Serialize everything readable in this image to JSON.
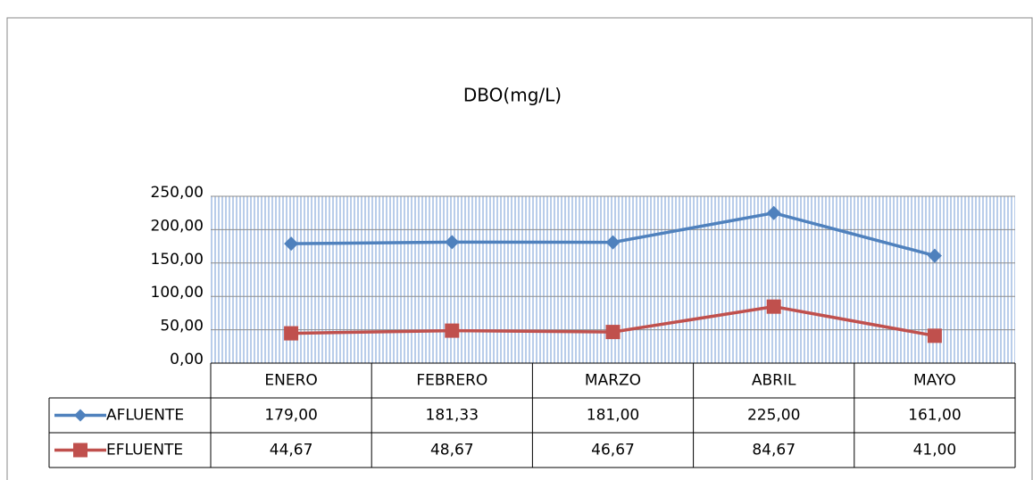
{
  "chart_data": {
    "type": "line",
    "title": "DBO(mg/L)",
    "categories": [
      "ENERO",
      "FEBRERO",
      "MARZO",
      "ABRIL",
      "MAYO"
    ],
    "series": [
      {
        "name": "AFLUENTE",
        "color": "#4f81bd",
        "marker": "diamond",
        "values": [
          179.0,
          181.33,
          181.0,
          225.0,
          161.0
        ],
        "value_labels": [
          "179,00",
          "181,33",
          "181,00",
          "225,00",
          "161,00"
        ]
      },
      {
        "name": "EFLUENTE",
        "color": "#c0504d",
        "marker": "square",
        "values": [
          44.67,
          48.67,
          46.67,
          84.67,
          41.0
        ],
        "value_labels": [
          "44,67",
          "48,67",
          "46,67",
          "84,67",
          "41,00"
        ]
      }
    ],
    "ylim": [
      0,
      250
    ],
    "yticks": [
      {
        "value": 0,
        "label": "0,00"
      },
      {
        "value": 50,
        "label": "50,00"
      },
      {
        "value": 100,
        "label": "100,00"
      },
      {
        "value": 150,
        "label": "150,00"
      },
      {
        "value": 200,
        "label": "200,00"
      },
      {
        "value": 250,
        "label": "250,00"
      }
    ],
    "grid": true,
    "data_table": true
  }
}
